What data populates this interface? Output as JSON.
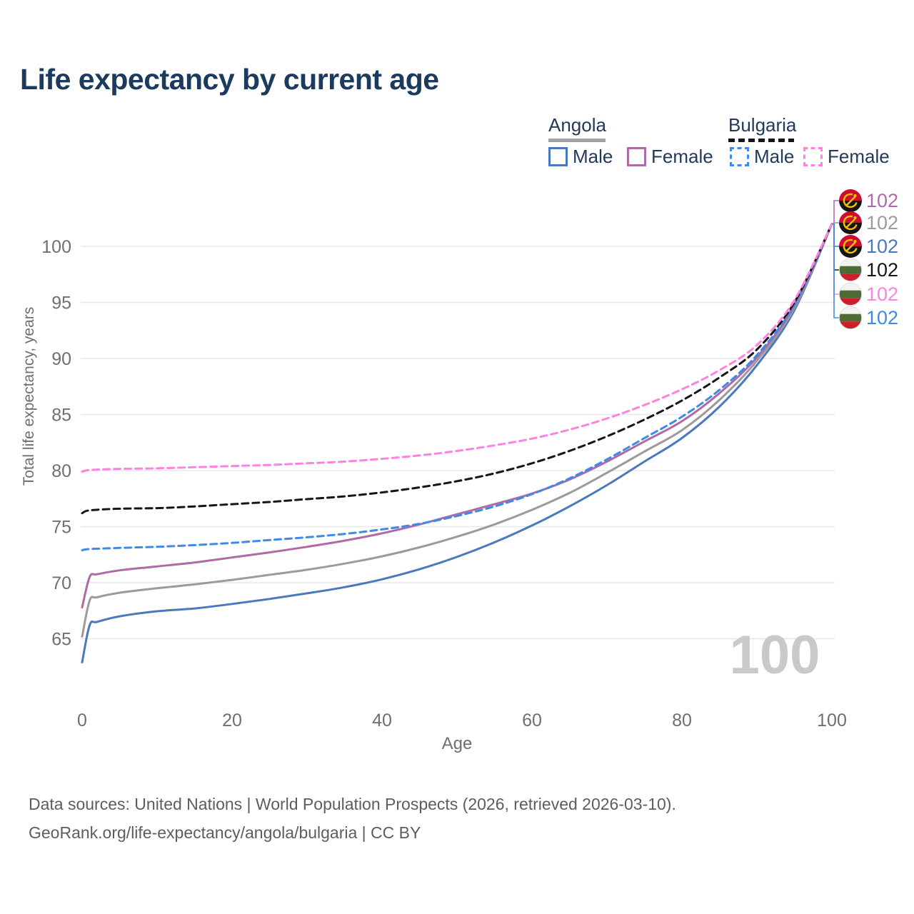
{
  "title": "Life expectancy by current age",
  "legend": {
    "groups": [
      {
        "name": "Angola",
        "line_style": "solid",
        "underline_color": "#a2a2a2",
        "items": [
          {
            "label": "Male",
            "color": "#4b79bd"
          },
          {
            "label": "Female",
            "color": "#b06aa5"
          }
        ]
      },
      {
        "name": "Bulgaria",
        "line_style": "dashed",
        "underline_color": "#141414",
        "items": [
          {
            "label": "Male",
            "color": "#3f8ae8"
          },
          {
            "label": "Female",
            "color": "#ff82e2"
          }
        ]
      }
    ]
  },
  "chart_data": {
    "type": "line",
    "title": "Life expectancy by current age",
    "xlabel": "Age",
    "ylabel": "Total life expectancy, years",
    "x_ticks": [
      0,
      20,
      40,
      60,
      80,
      100
    ],
    "y_ticks": [
      65,
      70,
      75,
      80,
      85,
      90,
      95,
      100
    ],
    "xlim": [
      0,
      100
    ],
    "ylim": [
      61,
      103
    ],
    "grid": "horizontal",
    "watermark": "100",
    "series": [
      {
        "key": "angola-female",
        "name": "Angola Female",
        "country": "Angola",
        "sex": "Female",
        "color": "#b06aa5",
        "dash": false,
        "flag": "angola",
        "end_label": "102",
        "points": [
          [
            0,
            67.8
          ],
          [
            1,
            70.5
          ],
          [
            2,
            70.75
          ],
          [
            5,
            71.1
          ],
          [
            10,
            71.45
          ],
          [
            15,
            71.8
          ],
          [
            20,
            72.25
          ],
          [
            25,
            72.7
          ],
          [
            30,
            73.2
          ],
          [
            35,
            73.75
          ],
          [
            40,
            74.4
          ],
          [
            45,
            75.2
          ],
          [
            50,
            76.1
          ],
          [
            55,
            77.0
          ],
          [
            60,
            77.95
          ],
          [
            65,
            79.2
          ],
          [
            70,
            80.8
          ],
          [
            75,
            82.6
          ],
          [
            80,
            84.4
          ],
          [
            85,
            86.9
          ],
          [
            90,
            90.1
          ],
          [
            95,
            94.7
          ],
          [
            100,
            102
          ]
        ]
      },
      {
        "key": "angola-both",
        "name": "Angola Both sexes",
        "country": "Angola",
        "sex": "Both",
        "color": "#9b9b9b",
        "dash": false,
        "flag": "angola",
        "end_label": "102",
        "points": [
          [
            0,
            65.2
          ],
          [
            1,
            68.4
          ],
          [
            2,
            68.7
          ],
          [
            5,
            69.1
          ],
          [
            10,
            69.5
          ],
          [
            15,
            69.85
          ],
          [
            20,
            70.25
          ],
          [
            25,
            70.7
          ],
          [
            30,
            71.15
          ],
          [
            35,
            71.7
          ],
          [
            40,
            72.35
          ],
          [
            45,
            73.15
          ],
          [
            50,
            74.1
          ],
          [
            55,
            75.2
          ],
          [
            60,
            76.5
          ],
          [
            65,
            78.0
          ],
          [
            70,
            79.8
          ],
          [
            75,
            81.7
          ],
          [
            80,
            83.6
          ],
          [
            85,
            86.3
          ],
          [
            90,
            89.8
          ],
          [
            95,
            94.5
          ],
          [
            100,
            102
          ]
        ]
      },
      {
        "key": "angola-male",
        "name": "Angola Male",
        "country": "Angola",
        "sex": "Male",
        "color": "#4b79bd",
        "dash": false,
        "flag": "angola",
        "end_label": "102",
        "points": [
          [
            0,
            62.9
          ],
          [
            1,
            66.2
          ],
          [
            2,
            66.5
          ],
          [
            5,
            67.0
          ],
          [
            10,
            67.45
          ],
          [
            15,
            67.7
          ],
          [
            20,
            68.1
          ],
          [
            25,
            68.55
          ],
          [
            30,
            69.05
          ],
          [
            35,
            69.6
          ],
          [
            40,
            70.3
          ],
          [
            45,
            71.2
          ],
          [
            50,
            72.3
          ],
          [
            55,
            73.6
          ],
          [
            60,
            75.1
          ],
          [
            65,
            76.8
          ],
          [
            70,
            78.7
          ],
          [
            75,
            80.8
          ],
          [
            80,
            82.9
          ],
          [
            85,
            85.7
          ],
          [
            90,
            89.4
          ],
          [
            95,
            94.3
          ],
          [
            100,
            102
          ]
        ]
      },
      {
        "key": "bulgaria-both",
        "name": "Bulgaria Both sexes",
        "country": "Bulgaria",
        "sex": "Both",
        "color": "#161616",
        "dash": true,
        "flag": "bulgaria",
        "end_label": "102",
        "points": [
          [
            0,
            76.2
          ],
          [
            1,
            76.45
          ],
          [
            5,
            76.6
          ],
          [
            10,
            76.65
          ],
          [
            15,
            76.8
          ],
          [
            20,
            77.0
          ],
          [
            25,
            77.2
          ],
          [
            30,
            77.45
          ],
          [
            35,
            77.7
          ],
          [
            40,
            78.05
          ],
          [
            45,
            78.5
          ],
          [
            50,
            79.05
          ],
          [
            55,
            79.75
          ],
          [
            60,
            80.65
          ],
          [
            65,
            81.75
          ],
          [
            70,
            83.05
          ],
          [
            75,
            84.55
          ],
          [
            80,
            86.25
          ],
          [
            85,
            88.3
          ],
          [
            90,
            90.8
          ],
          [
            95,
            95.0
          ],
          [
            100,
            102
          ]
        ]
      },
      {
        "key": "bulgaria-female",
        "name": "Bulgaria Female",
        "country": "Bulgaria",
        "sex": "Female",
        "color": "#ff82e2",
        "dash": true,
        "flag": "bulgaria",
        "end_label": "102",
        "points": [
          [
            0,
            79.9
          ],
          [
            1,
            80.05
          ],
          [
            5,
            80.15
          ],
          [
            10,
            80.2
          ],
          [
            15,
            80.3
          ],
          [
            20,
            80.4
          ],
          [
            25,
            80.5
          ],
          [
            30,
            80.65
          ],
          [
            35,
            80.8
          ],
          [
            40,
            81.05
          ],
          [
            45,
            81.35
          ],
          [
            50,
            81.75
          ],
          [
            55,
            82.25
          ],
          [
            60,
            82.85
          ],
          [
            65,
            83.65
          ],
          [
            70,
            84.65
          ],
          [
            75,
            85.85
          ],
          [
            80,
            87.25
          ],
          [
            85,
            88.95
          ],
          [
            90,
            91.2
          ],
          [
            95,
            95.2
          ],
          [
            100,
            102
          ]
        ]
      },
      {
        "key": "bulgaria-male",
        "name": "Bulgaria Male",
        "country": "Bulgaria",
        "sex": "Male",
        "color": "#3f8ae8",
        "dash": true,
        "flag": "bulgaria",
        "end_label": "102",
        "points": [
          [
            0,
            72.9
          ],
          [
            1,
            73.0
          ],
          [
            5,
            73.1
          ],
          [
            10,
            73.2
          ],
          [
            15,
            73.35
          ],
          [
            20,
            73.55
          ],
          [
            25,
            73.8
          ],
          [
            30,
            74.05
          ],
          [
            35,
            74.35
          ],
          [
            40,
            74.75
          ],
          [
            45,
            75.25
          ],
          [
            50,
            75.95
          ],
          [
            55,
            76.8
          ],
          [
            60,
            77.9
          ],
          [
            65,
            79.3
          ],
          [
            70,
            81.0
          ],
          [
            75,
            82.9
          ],
          [
            80,
            84.8
          ],
          [
            85,
            87.2
          ],
          [
            90,
            90.3
          ],
          [
            95,
            94.8
          ],
          [
            100,
            102
          ]
        ]
      }
    ],
    "axis_color": "#6f6f6f",
    "grid_color": "#e7e7e7",
    "watermark_color": "#c9c9c9"
  },
  "footer": {
    "line1": "Data sources: United Nations | World Population Prospects (2026, retrieved 2026-03-10).",
    "line2": "GeoRank.org/life-expectancy/angola/bulgaria | CC BY"
  }
}
